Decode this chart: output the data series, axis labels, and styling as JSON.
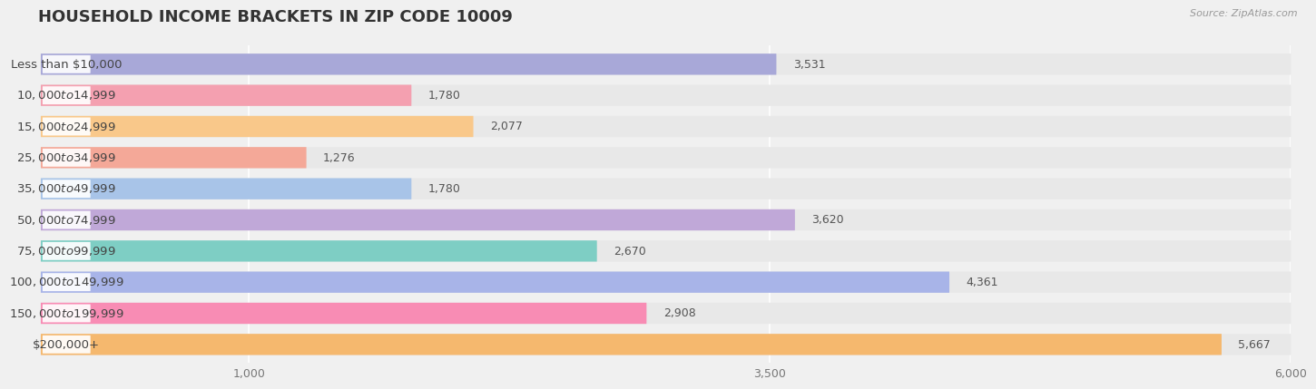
{
  "title": "HOUSEHOLD INCOME BRACKETS IN ZIP CODE 10009",
  "source": "Source: ZipAtlas.com",
  "categories": [
    "Less than $10,000",
    "$10,000 to $14,999",
    "$15,000 to $24,999",
    "$25,000 to $34,999",
    "$35,000 to $49,999",
    "$50,000 to $74,999",
    "$75,000 to $99,999",
    "$100,000 to $149,999",
    "$150,000 to $199,999",
    "$200,000+"
  ],
  "values": [
    3531,
    1780,
    2077,
    1276,
    1780,
    3620,
    2670,
    4361,
    2908,
    5667
  ],
  "colors": [
    "#a8a8d8",
    "#f4a0b0",
    "#f9c88a",
    "#f4a898",
    "#a8c4e8",
    "#c0a8d8",
    "#7ecec4",
    "#a8b4e8",
    "#f88cb4",
    "#f5b86e"
  ],
  "xlim": [
    0,
    6000
  ],
  "xticks": [
    1000,
    3500,
    6000
  ],
  "xtick_labels": [
    "1,000",
    "3,500",
    "6,000"
  ],
  "bg_color": "#f0f0f0",
  "bar_bg_color": "#e8e8e8",
  "pill_bg_color": "#ffffff",
  "title_fontsize": 13,
  "label_fontsize": 9.5,
  "value_fontsize": 9
}
